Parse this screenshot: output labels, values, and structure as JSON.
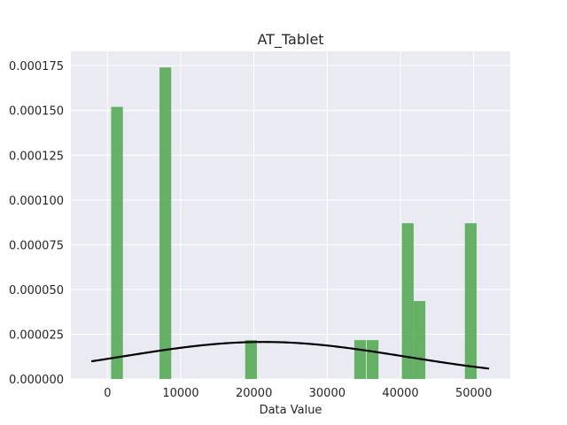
{
  "chart_data": {
    "type": "bar",
    "title": "AT_Tablet",
    "xlabel": "Data Value",
    "ylabel": "",
    "xlim": [
      -5000,
      55000
    ],
    "ylim": [
      0,
      0.000183
    ],
    "x_ticks": [
      0,
      10000,
      20000,
      30000,
      40000,
      50000
    ],
    "x_tick_labels": [
      "0",
      "10000",
      "20000",
      "30000",
      "40000",
      "50000"
    ],
    "y_ticks": [
      0,
      2.5e-05,
      5e-05,
      7.5e-05,
      0.0001,
      0.000125,
      0.00015,
      0.000175
    ],
    "y_tick_labels": [
      "0.000000",
      "0.000025",
      "0.000050",
      "0.000075",
      "0.000100",
      "0.000125",
      "0.000150",
      "0.000175"
    ],
    "grid": true,
    "background": "#eaeaf2",
    "bar_color": "#4ca64c",
    "curve_color": "#000000",
    "bars": [
      {
        "x0": 500,
        "x1": 2100,
        "value": 0.000152
      },
      {
        "x0": 7100,
        "x1": 8700,
        "value": 0.000174
      },
      {
        "x0": 18800,
        "x1": 20400,
        "value": 2.17e-05
      },
      {
        "x0": 33700,
        "x1": 35300,
        "value": 2.17e-05
      },
      {
        "x0": 35400,
        "x1": 37000,
        "value": 2.17e-05
      },
      {
        "x0": 40200,
        "x1": 41800,
        "value": 8.7e-05
      },
      {
        "x0": 41800,
        "x1": 43400,
        "value": 4.35e-05
      },
      {
        "x0": 48800,
        "x1": 50400,
        "value": 8.7e-05
      }
    ],
    "curve": {
      "type": "normal-pdf",
      "mean": 21300,
      "std": 19300,
      "x_range": [
        -2200,
        52100
      ]
    }
  }
}
